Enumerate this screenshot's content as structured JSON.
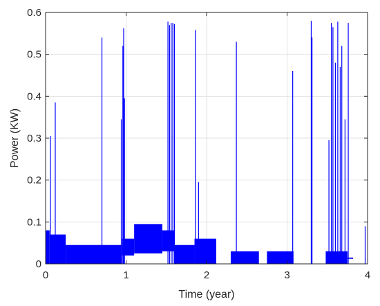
{
  "chart_data": {
    "type": "line",
    "title": "",
    "xlabel": "Time (year)",
    "ylabel": "Power (KW)",
    "xlim": [
      0,
      4
    ],
    "ylim": [
      0,
      0.6
    ],
    "xticks": [
      "0",
      "1",
      "2",
      "3",
      "4"
    ],
    "yticks": [
      "0",
      "0.1",
      "0.2",
      "0.3",
      "0.4",
      "0.5",
      "0.6"
    ],
    "grid": true,
    "series": [
      {
        "color": "#0000ff",
        "baseline_bands": [
          {
            "x": [
              0.0,
              0.05
            ],
            "low": 0.0,
            "high": 0.08
          },
          {
            "x": [
              0.05,
              0.25
            ],
            "low": 0.0,
            "high": 0.07
          },
          {
            "x": [
              0.25,
              0.7
            ],
            "low": 0.0,
            "high": 0.045
          },
          {
            "x": [
              0.7,
              0.95
            ],
            "low": 0.0,
            "high": 0.045
          },
          {
            "x": [
              0.95,
              1.1
            ],
            "low": 0.02,
            "high": 0.06
          },
          {
            "x": [
              1.1,
              1.45
            ],
            "low": 0.025,
            "high": 0.095
          },
          {
            "x": [
              1.45,
              1.6
            ],
            "low": 0.03,
            "high": 0.08
          },
          {
            "x": [
              1.6,
              1.85
            ],
            "low": 0.0,
            "high": 0.045
          },
          {
            "x": [
              1.85,
              2.12
            ],
            "low": 0.0,
            "high": 0.06
          },
          {
            "x": [
              2.3,
              2.65
            ],
            "low": 0.0,
            "high": 0.03
          },
          {
            "x": [
              2.75,
              3.08
            ],
            "low": 0.0,
            "high": 0.03
          },
          {
            "x": [
              3.48,
              3.75
            ],
            "low": 0.0,
            "high": 0.03
          },
          {
            "x": [
              3.75,
              3.82
            ],
            "low": 0.012,
            "high": 0.015
          }
        ],
        "spikes": [
          {
            "x": 0.06,
            "y": 0.305
          },
          {
            "x": 0.12,
            "y": 0.385
          },
          {
            "x": 0.7,
            "y": 0.54
          },
          {
            "x": 0.94,
            "y": 0.345
          },
          {
            "x": 0.96,
            "y": 0.52
          },
          {
            "x": 0.97,
            "y": 0.562
          },
          {
            "x": 0.98,
            "y": 0.395
          },
          {
            "x": 1.52,
            "y": 0.578
          },
          {
            "x": 1.54,
            "y": 0.57
          },
          {
            "x": 1.56,
            "y": 0.575
          },
          {
            "x": 1.58,
            "y": 0.575
          },
          {
            "x": 1.6,
            "y": 0.572
          },
          {
            "x": 1.86,
            "y": 0.558
          },
          {
            "x": 1.9,
            "y": 0.195
          },
          {
            "x": 2.37,
            "y": 0.53
          },
          {
            "x": 3.07,
            "y": 0.46
          },
          {
            "x": 3.3,
            "y": 0.58
          },
          {
            "x": 3.31,
            "y": 0.54
          },
          {
            "x": 3.52,
            "y": 0.295
          },
          {
            "x": 3.55,
            "y": 0.575
          },
          {
            "x": 3.57,
            "y": 0.565
          },
          {
            "x": 3.6,
            "y": 0.48
          },
          {
            "x": 3.63,
            "y": 0.578
          },
          {
            "x": 3.66,
            "y": 0.47
          },
          {
            "x": 3.68,
            "y": 0.52
          },
          {
            "x": 3.72,
            "y": 0.345
          },
          {
            "x": 3.76,
            "y": 0.575
          },
          {
            "x": 3.97,
            "y": 0.09
          }
        ]
      }
    ]
  }
}
